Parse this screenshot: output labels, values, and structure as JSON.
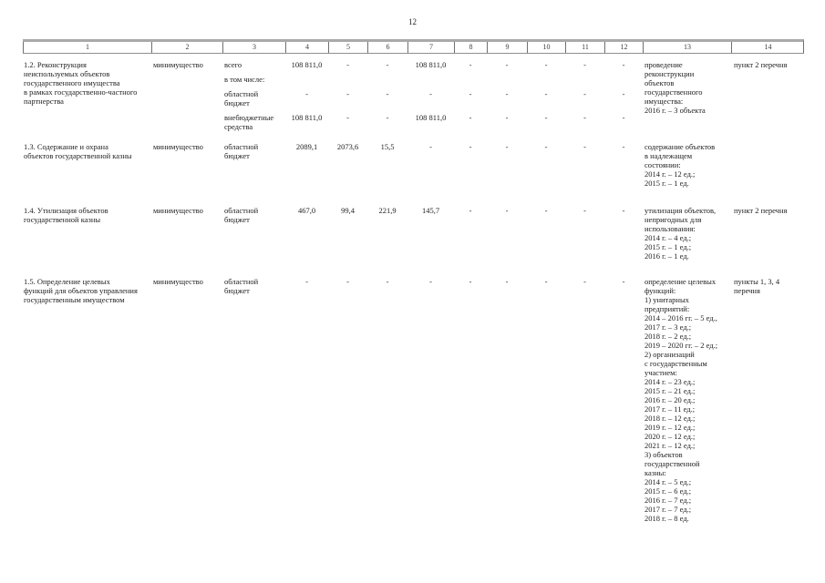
{
  "page": {
    "number": "12"
  },
  "table": {
    "header": [
      "1",
      "2",
      "3",
      "4",
      "5",
      "6",
      "7",
      "8",
      "9",
      "10",
      "11",
      "12",
      "13",
      "14"
    ],
    "rows": [
      {
        "id": "1.2",
        "col1": "1.2. Реконструкция\nнеиспользуемых объектов\nгосударственного имущества\nв рамках государственно-частного\nпартнерства",
        "col2": "минимущество",
        "subrows": [
          {
            "label": "всего",
            "values": [
              "108 811,0",
              "-",
              "-",
              "108 811,0",
              "-",
              "-",
              "-",
              "-",
              "-"
            ]
          },
          {
            "label": "в том числе:",
            "values": []
          },
          {
            "label": "областной\nбюджет",
            "values": [
              "-",
              "-",
              "-",
              "-",
              "-",
              "-",
              "-",
              "-",
              "-"
            ]
          },
          {
            "label": "внебюджетные\nсредства",
            "values": [
              "108 811,0",
              "-",
              "-",
              "108 811,0",
              "-",
              "-",
              "-",
              "-",
              "-"
            ]
          }
        ],
        "col13": "проведение\nреконструкции\nобъектов\nгосударственного\nимущества:\n2016 г. – 3 объекта",
        "col14": "пункт 2 перечня"
      },
      {
        "id": "1.3",
        "col1": "1.3. Содержание и охрана\nобъектов государственной казны",
        "col2": "минимущество",
        "col3": "областной\nбюджет",
        "values": [
          "2089,1",
          "2073,6",
          "15,5",
          "-",
          "-",
          "-",
          "-",
          "-",
          "-"
        ],
        "col13": "содержание объектов\nв надлежащем\nсостоянии:\n2014 г. – 12 ед.;\n2015 г. – 1 ед.",
        "col14": ""
      },
      {
        "id": "1.4",
        "col1": "1.4. Утилизация объектов\nгосударственной казны",
        "col2": "минимущество",
        "col3": "областной\nбюджет",
        "values": [
          "467,0",
          "99,4",
          "221,9",
          "145,7",
          "-",
          "-",
          "-",
          "-",
          "-"
        ],
        "col13": "утилизация объектов,\nнепригодных для\nиспользования:\n2014 г. – 4 ед.;\n2015 г. – 1 ед.;\n2016 г. – 1 ед.",
        "col14": "пункт 2 перечня"
      },
      {
        "id": "1.5",
        "col1": "1.5. Определение целевых\nфункций для объектов управления\nгосударственным имуществом",
        "col2": "минимущество",
        "col3": "областной\nбюджет",
        "values": [
          "-",
          "-",
          "-",
          "-",
          "-",
          "-",
          "-",
          "-",
          "-"
        ],
        "col13": "определение целевых\nфункций:\n1) унитарных\nпредприятий:\n2014 – 2016 гг. – 5 ед.,\n2017 г. – 3 ед.;\n2018 г. – 2 ед.;\n2019 – 2020 гг. – 2 ед.;\n2) организаций\nс государственным\nучастием:\n2014 г. – 23 ед.;\n2015 г. – 21 ед.;\n2016 г. – 20 ед.;\n2017 г. – 11 ед.;\n2018 г. – 12 ед.;\n2019 г. – 12 ед.;\n2020 г. – 12 ед.;\n2021 г. – 12 ед.;\n3) объектов\nгосударственной\nказны:\n2014 г. – 5 ед.;\n2015 г. – 6 ед.;\n2016 г. – 7 ед.;\n2017 г. – 7 ед.;\n2018 г. – 8 ед.",
        "col14": "пункты 1, 3, 4\nперечня"
      }
    ]
  }
}
